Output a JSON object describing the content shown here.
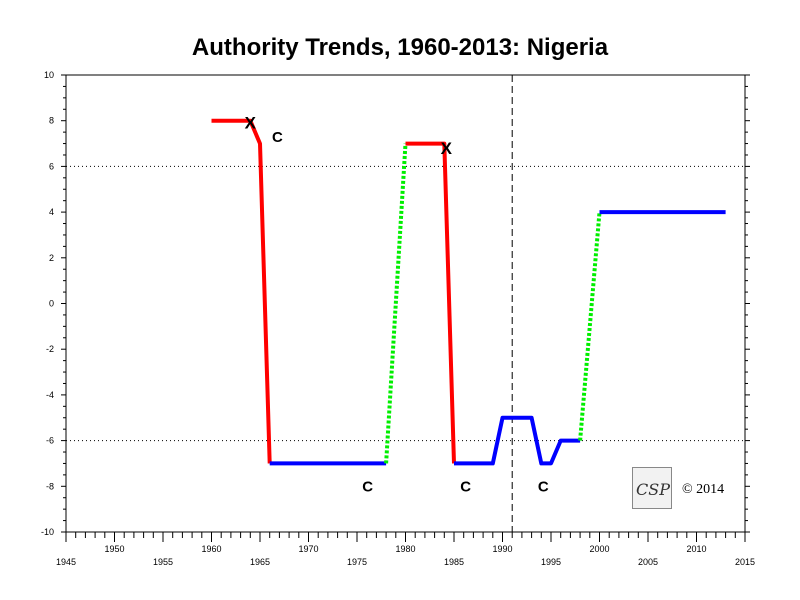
{
  "chart_data": {
    "type": "line",
    "title": "Authority Trends, 1960-2013: Nigeria",
    "xlim": [
      1945,
      2015
    ],
    "ylim": [
      -10,
      10
    ],
    "x_tick_labels": [
      "1945",
      "1950",
      "1955",
      "1960",
      "1965",
      "1970",
      "1975",
      "1980",
      "1985",
      "1990",
      "1995",
      "2000",
      "2005",
      "2010",
      "2015"
    ],
    "y_tick_labels": [
      "10",
      "8",
      "6",
      "4",
      "2",
      "0",
      "-2",
      "-4",
      "-6",
      "-8",
      "-10"
    ],
    "reference_lines": {
      "horizontal_dotted": [
        6,
        -6
      ],
      "vertical_dashed": [
        1991
      ]
    },
    "segments": [
      {
        "style": "solid",
        "color": "#ff0000",
        "points": [
          [
            1960,
            8
          ],
          [
            1964,
            8
          ],
          [
            1965,
            7
          ],
          [
            1966,
            -7
          ]
        ]
      },
      {
        "style": "solid",
        "color": "#0000ff",
        "points": [
          [
            1966,
            -7
          ],
          [
            1978,
            -7
          ]
        ]
      },
      {
        "style": "dotted",
        "color": "#00ee00",
        "points": [
          [
            1978,
            -7
          ],
          [
            1980,
            7
          ]
        ]
      },
      {
        "style": "solid",
        "color": "#ff0000",
        "points": [
          [
            1980,
            7
          ],
          [
            1984,
            7
          ],
          [
            1985,
            -7
          ]
        ]
      },
      {
        "style": "solid",
        "color": "#0000ff",
        "points": [
          [
            1985,
            -7
          ],
          [
            1989,
            -7
          ],
          [
            1990,
            -5
          ],
          [
            1993,
            -5
          ],
          [
            1994,
            -7
          ],
          [
            1995,
            -7
          ],
          [
            1996,
            -6
          ],
          [
            1998,
            -6
          ]
        ]
      },
      {
        "style": "dotted",
        "color": "#00ee00",
        "points": [
          [
            1998,
            -6
          ],
          [
            2000,
            4
          ]
        ]
      },
      {
        "style": "solid",
        "color": "#0000ff",
        "points": [
          [
            2000,
            4
          ],
          [
            2013,
            4
          ]
        ]
      }
    ],
    "annotations": [
      {
        "text": "X",
        "x": 1964,
        "y": 8
      },
      {
        "text": "C",
        "x": 1966.8,
        "y": 7.5
      },
      {
        "text": "X",
        "x": 1984.2,
        "y": 6.9
      },
      {
        "text": "C",
        "x": 1976.1,
        "y": -7.8
      },
      {
        "text": "C",
        "x": 1986.2,
        "y": -7.8
      },
      {
        "text": "C",
        "x": 1994.2,
        "y": -7.8
      }
    ]
  },
  "footer": {
    "logo_text": "CSP",
    "copyright": "© 2014"
  }
}
